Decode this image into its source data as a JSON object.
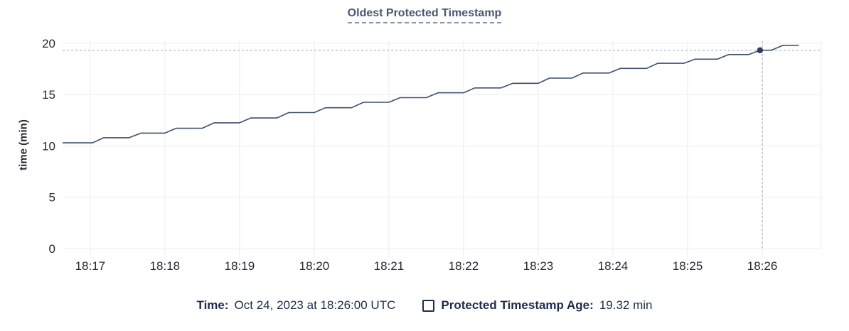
{
  "header": {
    "title": "Oldest Protected Timestamp"
  },
  "footer": {
    "time_label": "Time:",
    "time_value": "Oct 24, 2023 at 18:26:00 UTC",
    "series_label": "Protected Timestamp Age:",
    "series_value": "19.32 min"
  },
  "chart_data": {
    "type": "line",
    "title": "Oldest Protected Timestamp",
    "xlabel": "",
    "ylabel": "time (min)",
    "x_ticks": [
      "18:17",
      "18:18",
      "18:19",
      "18:20",
      "18:21",
      "18:22",
      "18:23",
      "18:24",
      "18:25",
      "18:26"
    ],
    "x_tick_minutes": [
      17,
      18,
      19,
      20,
      21,
      22,
      23,
      24,
      25,
      26
    ],
    "y_ticks": [
      0,
      5,
      10,
      15,
      20
    ],
    "ylim": [
      0,
      20.2
    ],
    "xlim_minutes": [
      16.63,
      26.79
    ],
    "grid": true,
    "legend_position": "bottom-center",
    "series": [
      {
        "name": "Protected Timestamp Age",
        "unit": "min",
        "color": "#3e4f6c",
        "points": [
          [
            16.63,
            10.3
          ],
          [
            17.03,
            10.3
          ],
          [
            17.18,
            10.8
          ],
          [
            17.52,
            10.8
          ],
          [
            17.68,
            11.25
          ],
          [
            18.0,
            11.25
          ],
          [
            18.15,
            11.72
          ],
          [
            18.5,
            11.72
          ],
          [
            18.66,
            12.25
          ],
          [
            19.0,
            12.25
          ],
          [
            19.15,
            12.72
          ],
          [
            19.5,
            12.72
          ],
          [
            19.66,
            13.25
          ],
          [
            20.0,
            13.25
          ],
          [
            20.15,
            13.72
          ],
          [
            20.5,
            13.72
          ],
          [
            20.66,
            14.25
          ],
          [
            21.0,
            14.25
          ],
          [
            21.15,
            14.7
          ],
          [
            21.5,
            14.7
          ],
          [
            21.66,
            15.18
          ],
          [
            22.0,
            15.18
          ],
          [
            22.15,
            15.65
          ],
          [
            22.5,
            15.65
          ],
          [
            22.66,
            16.1
          ],
          [
            23.0,
            16.1
          ],
          [
            23.15,
            16.6
          ],
          [
            23.45,
            16.6
          ],
          [
            23.6,
            17.1
          ],
          [
            23.95,
            17.1
          ],
          [
            24.1,
            17.55
          ],
          [
            24.45,
            17.55
          ],
          [
            24.6,
            18.05
          ],
          [
            24.95,
            18.05
          ],
          [
            25.1,
            18.45
          ],
          [
            25.4,
            18.45
          ],
          [
            25.55,
            18.9
          ],
          [
            25.82,
            18.9
          ],
          [
            25.97,
            19.32
          ],
          [
            26.12,
            19.32
          ],
          [
            26.28,
            19.8
          ],
          [
            26.49,
            19.8
          ]
        ]
      }
    ],
    "crosshair": {
      "time_label": "18:26:00",
      "time_minutes": 26.0,
      "value_min": 19.32
    },
    "highlight_point": [
      25.97,
      19.32
    ],
    "colors": {
      "grid": "#ececec",
      "tick_text": "#242a35",
      "title": "#475872",
      "crosshair": "#a5b8c6",
      "dot": "#2c3c5c",
      "legend_text": "#1c2c4e"
    }
  }
}
